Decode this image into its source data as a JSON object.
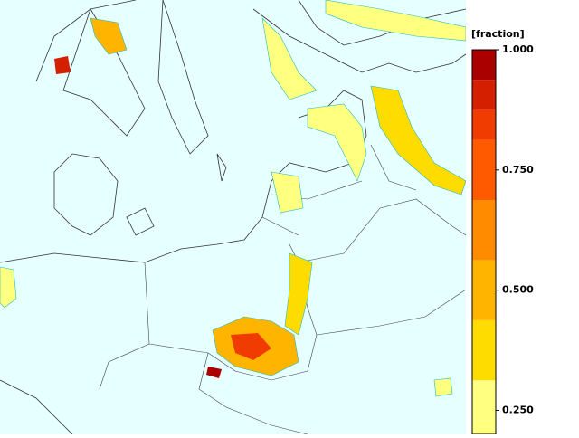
{
  "colorbar": {
    "title": "[fraction]",
    "lim": [
      0.2,
      1.0
    ],
    "levels": [
      0.2,
      0.3125,
      0.4375,
      0.5625,
      0.6875,
      0.8125,
      0.875,
      0.9375,
      1.0
    ],
    "colors": [
      "#ffff80",
      "#ffdc00",
      "#ffb400",
      "#ff8c00",
      "#ff5a00",
      "#f03c00",
      "#d42000",
      "#aa0000"
    ],
    "ticks": [
      {
        "value": 1.0,
        "label": "1.000"
      },
      {
        "value": 0.75,
        "label": "0.750"
      },
      {
        "value": 0.5,
        "label": "0.500"
      },
      {
        "value": 0.25,
        "label": "0.250"
      }
    ]
  }
}
